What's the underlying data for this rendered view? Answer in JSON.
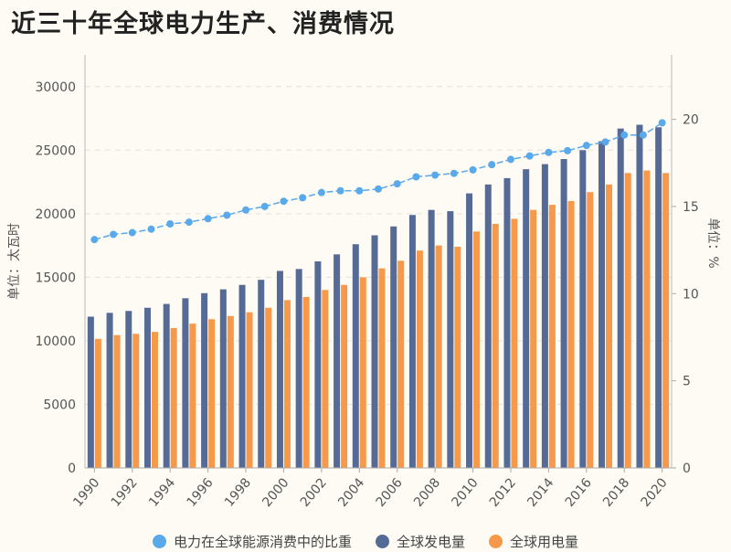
{
  "title": "近三十年全球电力生产、消费情况",
  "chart_data": {
    "type": "bar",
    "title": "近三十年全球电力生产、消费情况",
    "categories": [
      "1990",
      "1991",
      "1992",
      "1993",
      "1994",
      "1995",
      "1996",
      "1997",
      "1998",
      "1999",
      "2000",
      "2001",
      "2002",
      "2003",
      "2004",
      "2005",
      "2006",
      "2007",
      "2008",
      "2009",
      "2010",
      "2011",
      "2012",
      "2013",
      "2014",
      "2015",
      "2016",
      "2017",
      "2018",
      "2019",
      "2020"
    ],
    "x_tick_labels": [
      "1990",
      "1992",
      "1994",
      "1996",
      "1998",
      "2000",
      "2002",
      "2004",
      "2006",
      "2008",
      "2010",
      "2012",
      "2014",
      "2016",
      "2018",
      "2020"
    ],
    "ylabel": "单位：太瓦时",
    "y2label": "单位：%",
    "ylim": [
      0,
      32500
    ],
    "y2lim": [
      0,
      23.7
    ],
    "y_ticks": [
      0,
      5000,
      10000,
      15000,
      20000,
      25000,
      30000
    ],
    "y2_ticks": [
      0,
      5,
      10,
      15,
      20
    ],
    "grid": true,
    "legend_position": "bottom",
    "series": [
      {
        "name": "电力在全球能源消费中的比重",
        "type": "line",
        "axis": "right",
        "color": "#5aa9ea",
        "values": [
          13.1,
          13.4,
          13.5,
          13.7,
          14.0,
          14.1,
          14.3,
          14.5,
          14.8,
          15.0,
          15.3,
          15.5,
          15.8,
          15.9,
          15.9,
          16.0,
          16.3,
          16.7,
          16.8,
          16.9,
          17.1,
          17.4,
          17.7,
          17.9,
          18.1,
          18.2,
          18.5,
          18.7,
          19.1,
          19.1,
          19.8
        ]
      },
      {
        "name": "全球发电量",
        "type": "bar",
        "axis": "left",
        "color": "#566a96",
        "values": [
          11900,
          12200,
          12350,
          12600,
          12900,
          13350,
          13750,
          14050,
          14400,
          14800,
          15500,
          15650,
          16250,
          16800,
          17600,
          18300,
          19000,
          19900,
          20300,
          20200,
          21600,
          22300,
          22800,
          23500,
          23900,
          24300,
          25000,
          25700,
          26700,
          27000,
          26800
        ]
      },
      {
        "name": "全球用电量",
        "type": "bar",
        "axis": "left",
        "color": "#f7994a",
        "values": [
          10150,
          10450,
          10550,
          10700,
          11000,
          11350,
          11700,
          11950,
          12250,
          12600,
          13200,
          13450,
          14000,
          14400,
          15000,
          15700,
          16300,
          17100,
          17500,
          17400,
          18600,
          19200,
          19600,
          20300,
          20700,
          21000,
          21700,
          22300,
          23200,
          23400,
          23200
        ]
      }
    ]
  }
}
